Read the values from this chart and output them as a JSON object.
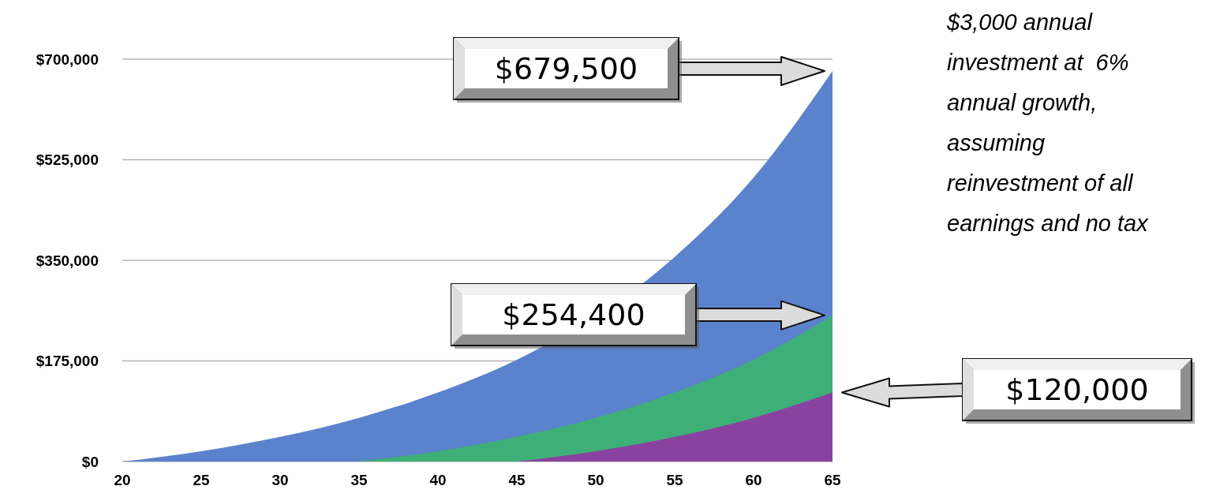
{
  "chart_data": {
    "type": "area",
    "ylim": [
      0,
      700000
    ],
    "yticks": [
      {
        "value": 0,
        "label": "$0"
      },
      {
        "value": 175000,
        "label": "$175,000"
      },
      {
        "value": 350000,
        "label": "$350,000"
      },
      {
        "value": 525000,
        "label": "$525,000"
      },
      {
        "value": 700000,
        "label": "$700,000"
      }
    ],
    "xlim": [
      20,
      65
    ],
    "xticks": [
      20,
      25,
      30,
      35,
      40,
      45,
      50,
      55,
      60,
      65
    ],
    "grid": "y",
    "series": [
      {
        "color": "#5b82cc",
        "x": [
          20,
          25,
          30,
          35,
          40,
          45,
          55,
          60,
          65
        ],
        "values": [
          0,
          18000,
          43000,
          76000,
          120000,
          177000,
          356000,
          494000,
          679500
        ]
      },
      {
        "color": "#3eb077",
        "x": [
          35,
          40,
          45,
          50,
          55,
          60,
          65
        ],
        "values": [
          0,
          18000,
          43000,
          76000,
          120000,
          177000,
          254400
        ]
      },
      {
        "color": "#8a42a0",
        "x": [
          45,
          50,
          55,
          60,
          65
        ],
        "values": [
          0,
          18000,
          43000,
          76000,
          120000
        ]
      }
    ],
    "annotations": [
      "$679,500",
      "$254,400",
      "$120,000",
      "$3,000 annual investment at  6% annual growth, assuming reinvestment of all earnings and no tax"
    ]
  }
}
